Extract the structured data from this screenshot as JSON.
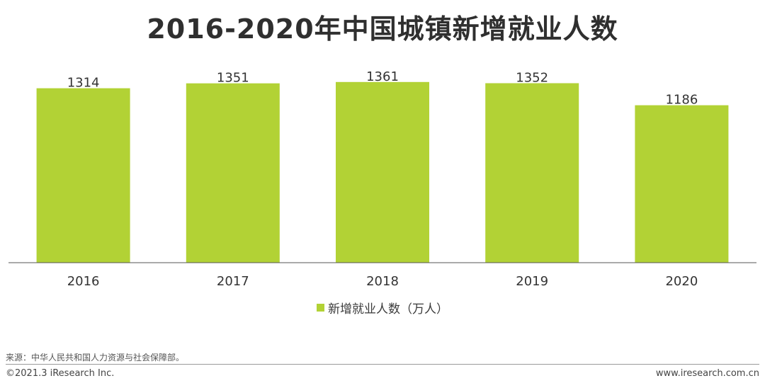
{
  "colors": {
    "bar": "#b2d235",
    "text": "#333333",
    "axis": "#555555"
  },
  "chart_data": {
    "type": "bar",
    "title": "2016-2020年中国城镇新增就业人数",
    "categories": [
      "2016",
      "2017",
      "2018",
      "2019",
      "2020"
    ],
    "series": [
      {
        "name": "新增就业人数（万人）",
        "values": [
          1314,
          1351,
          1361,
          1352,
          1186
        ]
      }
    ],
    "ylim": [
      0,
      1600
    ],
    "grid": false,
    "legend": "bottom"
  },
  "footer": {
    "source": "来源：中华人民共和国人力资源与社会保障部。",
    "copyright": "©2021.3 iResearch Inc.",
    "website": "www.iresearch.com.cn"
  }
}
